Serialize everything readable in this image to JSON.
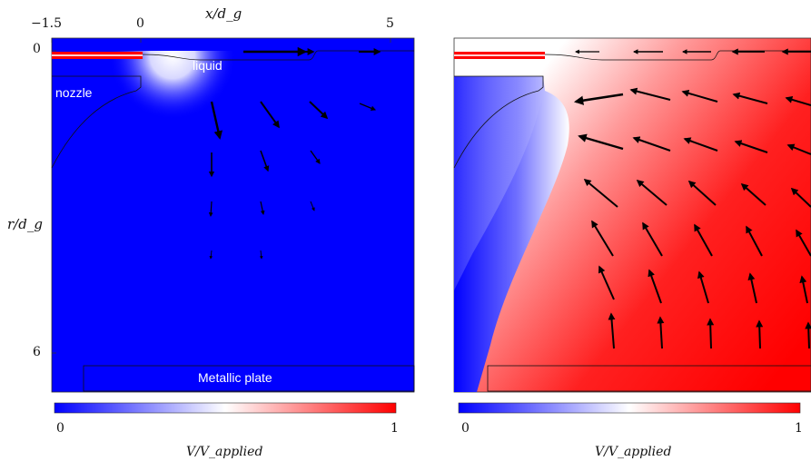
{
  "axes": {
    "top_label": "x/d_g",
    "left_label": "r/d_g",
    "x_ticks": [
      "−1.5",
      "0",
      "5"
    ],
    "y_ticks": [
      "0",
      "6"
    ]
  },
  "panels": [
    {
      "id": "left",
      "labels": {
        "liquid": "liquid",
        "nozzle": "nozzle",
        "plate": "Metallic plate"
      },
      "colorbar": {
        "min": "0",
        "max": "1",
        "label": "V/V_applied"
      }
    },
    {
      "id": "right",
      "colorbar": {
        "min": "0",
        "max": "1",
        "label": "V/V_applied"
      }
    }
  ],
  "colors": {
    "low": "#0000ff",
    "mid": "#ffffff",
    "high": "#ff0000",
    "arrow": "#000000"
  }
}
